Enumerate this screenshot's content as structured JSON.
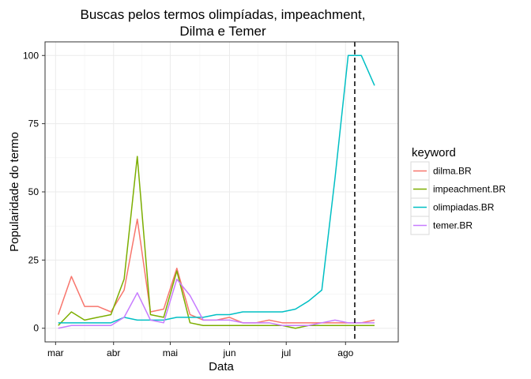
{
  "chart_data": {
    "type": "line",
    "title_lines": [
      "Buscas pelos termos olimpíadas, impeachment,",
      "Dilma e Temer"
    ],
    "xlabel": "Data",
    "ylabel": "Popularidade do termo",
    "x_ticks": [
      {
        "label": "mar",
        "week": -0.2
      },
      {
        "label": "abr",
        "week": 4.2
      },
      {
        "label": "mai",
        "week": 8.5
      },
      {
        "label": "jun",
        "week": 13.0
      },
      {
        "label": "jul",
        "week": 17.3
      },
      {
        "label": "ago",
        "week": 21.8
      }
    ],
    "y_ticks": [
      0,
      25,
      50,
      75,
      100
    ],
    "xlim": [
      -1,
      25.8
    ],
    "ylim": [
      -5,
      105
    ],
    "grid": true,
    "reference_line": {
      "week": 22.5,
      "style": "dashed",
      "color": "#000000"
    },
    "legend": {
      "title": "keyword",
      "position": "right"
    },
    "series": [
      {
        "name": "dilma.BR",
        "color": "#F8766D",
        "values": [
          5,
          19,
          8,
          8,
          6,
          14,
          40,
          6,
          7,
          22,
          5,
          3,
          3,
          4,
          2,
          2,
          3,
          2,
          2,
          2,
          2,
          2,
          2,
          2,
          3
        ]
      },
      {
        "name": "impeachment.BR",
        "color": "#7CAE00",
        "values": [
          1,
          6,
          3,
          4,
          5,
          18,
          63,
          5,
          4,
          21,
          2,
          1,
          1,
          1,
          1,
          1,
          1,
          1,
          0,
          1,
          1,
          1,
          1,
          1,
          1
        ]
      },
      {
        "name": "olimpiadas.BR",
        "color": "#00BFC4",
        "values": [
          2,
          2,
          2,
          2,
          2,
          4,
          3,
          3,
          3,
          4,
          4,
          4,
          5,
          5,
          6,
          6,
          6,
          6,
          7,
          10,
          14,
          55,
          100,
          100,
          89
        ]
      },
      {
        "name": "temer.BR",
        "color": "#C77CFF",
        "values": [
          0,
          1,
          1,
          1,
          1,
          4,
          13,
          3,
          2,
          18,
          12,
          3,
          3,
          3,
          2,
          2,
          2,
          1,
          1,
          1,
          2,
          3,
          2,
          2,
          2
        ]
      }
    ]
  }
}
